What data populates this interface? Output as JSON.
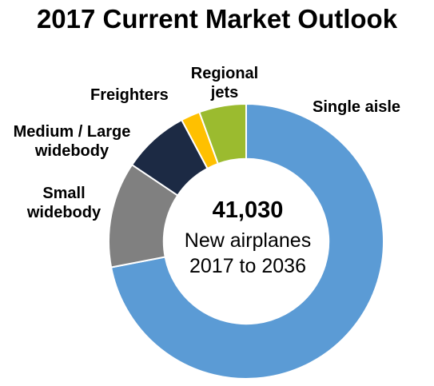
{
  "chart_data": {
    "type": "pie",
    "title": "2017 Current Market Outlook",
    "center_total": "41,030",
    "center_caption": [
      "New airplanes",
      "2017 to 2036"
    ],
    "slices": [
      {
        "label": "Single aisle",
        "label_lines": [
          "Single aisle"
        ],
        "value": 29530,
        "color": "#5b9bd5"
      },
      {
        "label": "Small widebody",
        "label_lines": [
          "Small",
          "widebody"
        ],
        "value": 5100,
        "color": "#808080"
      },
      {
        "label": "Medium / Large widebody",
        "label_lines": [
          "Medium / Large",
          "widebody"
        ],
        "value": 3210,
        "color": "#1c2a44"
      },
      {
        "label": "Freighters",
        "label_lines": [
          "Freighters"
        ],
        "value": 920,
        "color": "#ffc000"
      },
      {
        "label": "Regional jets",
        "label_lines": [
          "Regional",
          "jets"
        ],
        "value": 2270,
        "color": "#9bbb2f"
      }
    ],
    "start_angle_deg": 0,
    "direction": "clockwise",
    "inner_radius_ratio": 0.6
  }
}
